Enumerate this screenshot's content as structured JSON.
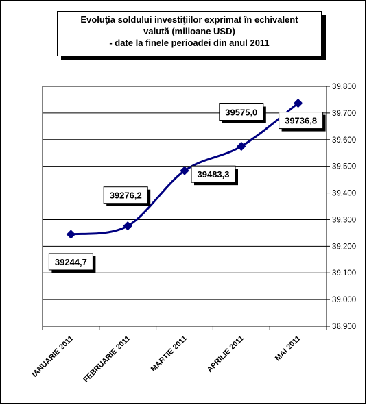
{
  "chart_data": {
    "type": "line",
    "title_lines": [
      "Evoluţia soldului investiţiilor exprimat în echivalent",
      "valută (milioane USD)",
      "- date la finele perioadei din anul 2011"
    ],
    "categories": [
      "IANUARIE 2011",
      "FEBRUARIE 2011",
      "MARTIE 2011",
      "APRILIE 2011",
      "MAI 2011"
    ],
    "values": [
      39244.7,
      39276.2,
      39483.3,
      39575.0,
      39736.8
    ],
    "data_labels": [
      "39244,7",
      "39276,2",
      "39483,3",
      "39575,0",
      "39736,8"
    ],
    "ylim": [
      38900,
      39800
    ],
    "ytick_labels": [
      "38.900",
      "39.000",
      "39.100",
      "39.200",
      "39.300",
      "39.400",
      "39.500",
      "39.600",
      "39.700",
      "39.800"
    ],
    "y_axis_side": "right",
    "grid": true,
    "legend": false,
    "line_color": "#000080"
  }
}
